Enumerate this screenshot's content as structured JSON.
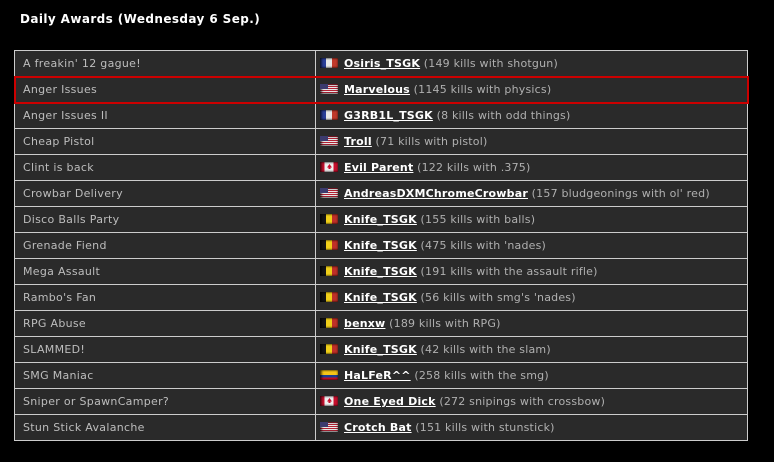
{
  "page": {
    "title": "Daily Awards (Wednesday 6 Sep.)"
  },
  "colors": {
    "background": "#000000",
    "title_text": "#ffffff",
    "row_background": "#2a2a2a",
    "table_border": "#cccccc",
    "award_text": "#bdbdbd",
    "player_link_text": "#ffffff",
    "stat_text": "#b0b0b0",
    "highlight_border": "#cc0000"
  },
  "awards_table": {
    "rows": [
      {
        "award": "A freakin' 12 gague!",
        "flag": "france",
        "player": "Osiris_TSGK",
        "stat": "(149 kills with shotgun)",
        "highlighted": false
      },
      {
        "award": "Anger Issues",
        "flag": "usa",
        "player": "Marvelous",
        "stat": "(1145 kills with physics)",
        "highlighted": true
      },
      {
        "award": "Anger Issues II",
        "flag": "france",
        "player": "G3RB1L_TSGK",
        "stat": "(8 kills with odd things)",
        "highlighted": false
      },
      {
        "award": "Cheap Pistol",
        "flag": "usa",
        "player": "Troll",
        "stat": "(71 kills with pistol)",
        "highlighted": false
      },
      {
        "award": "Clint is back",
        "flag": "canada",
        "player": "Evil Parent",
        "stat": "(122 kills with .375)",
        "highlighted": false
      },
      {
        "award": "Crowbar Delivery",
        "flag": "usa",
        "player": "AndreasDXMChromeCrowbar",
        "stat": "(157 bludgeonings with ol' red)",
        "highlighted": false
      },
      {
        "award": "Disco Balls Party",
        "flag": "belgium",
        "player": "Knife_TSGK",
        "stat": "(155 kills with balls)",
        "highlighted": false
      },
      {
        "award": "Grenade Fiend",
        "flag": "belgium",
        "player": "Knife_TSGK",
        "stat": "(475 kills with 'nades)",
        "highlighted": false
      },
      {
        "award": "Mega Assault",
        "flag": "belgium",
        "player": "Knife_TSGK",
        "stat": "(191 kills with the assault rifle)",
        "highlighted": false
      },
      {
        "award": "Rambo's Fan",
        "flag": "belgium",
        "player": "Knife_TSGK",
        "stat": "(56 kills with smg's 'nades)",
        "highlighted": false
      },
      {
        "award": "RPG Abuse",
        "flag": "belgium",
        "player": "benxw",
        "stat": "(189 kills with RPG)",
        "highlighted": false
      },
      {
        "award": "SLAMMED!",
        "flag": "belgium",
        "player": "Knife_TSGK",
        "stat": "(42 kills with the slam)",
        "highlighted": false
      },
      {
        "award": "SMG Maniac",
        "flag": "ecuador",
        "player": "HaLFeR^^",
        "stat": "(258 kills with the smg)",
        "highlighted": false
      },
      {
        "award": "Sniper or SpawnCamper?",
        "flag": "canada",
        "player": "One Eyed Dick",
        "stat": "(272 snipings with crossbow)",
        "highlighted": false
      },
      {
        "award": "Stun Stick Avalanche",
        "flag": "usa",
        "player": "Crotch Bat",
        "stat": "(151 kills with stunstick)",
        "highlighted": false
      }
    ]
  }
}
